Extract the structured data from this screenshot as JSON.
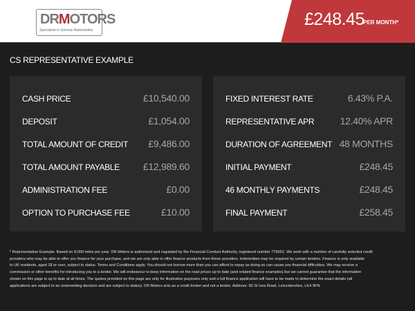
{
  "header": {
    "logo_text": "DRMotors",
    "logo_tagline": "Specialists in German Automobiles",
    "monthly_price": "£248.45",
    "per_month_label": "PER MONTH*",
    "accent_color": "#c0383b"
  },
  "title": "CS REPRESENTATIVE EXAMPLE",
  "left_panel": [
    {
      "label": "CASH PRICE",
      "value": "£10,540.00"
    },
    {
      "label": "DEPOSIT",
      "value": "£1,054.00"
    },
    {
      "label": "TOTAL AMOUNT OF CREDIT",
      "value": "£9,486.00"
    },
    {
      "label": "TOTAL AMOUNT PAYABLE",
      "value": "£12,989.60"
    },
    {
      "label": "ADMINISTRATION FEE",
      "value": "£0.00"
    },
    {
      "label": "OPTION TO PURCHASE FEE",
      "value": "£10.00"
    }
  ],
  "right_panel": [
    {
      "label": "FIXED INTEREST RATE",
      "value": "6.43% P.A."
    },
    {
      "label": "REPRESENTATIVE APR",
      "value": "12.40% APR"
    },
    {
      "label": "DURATION OF AGREEMENT",
      "value": "48 MONTHS"
    },
    {
      "label": "INITIAL PAYMENT",
      "value": "£248.45"
    },
    {
      "label": "46 MONTHLY PAYMENTS",
      "value": "£248.45"
    },
    {
      "label": "FINAL PAYMENT",
      "value": "£258.45"
    }
  ],
  "footnote": [
    "* Representative Example. Based on 8,000 miles per year. DR Motors is authorised and regulated by the Financial Conduct Authority, registered number 776652. We work with a number of carefully selected credit",
    "providers who may be able to offer you finance for your purchase, and we are only able to offer finance products from these providers. Indemnities may be required by certain lenders. Finance is only available",
    "to UK residents, aged 18 or over, subject to status. Terms and Conditions apply. You should not borrow more than you can afford to repay as doing so can cause you financial difficulties. We may receive a",
    "commission or other benefits for introducing you to a lender. We will endeavour to keep information on the road prices up to date (and related finance examples) but we cannot guarantee that the information",
    "shown on this page is up to date at all times. The quotes provided on this page are only for illustrative purposes only and a full finance application will have to be made to determine the exact details (all",
    "applications are subject to an underwriting decision and are subject to status). DR Motors acts as a credit broker and not a lender. Address: 50 St Ives Road, Leicestershire, LE4 9FN"
  ]
}
